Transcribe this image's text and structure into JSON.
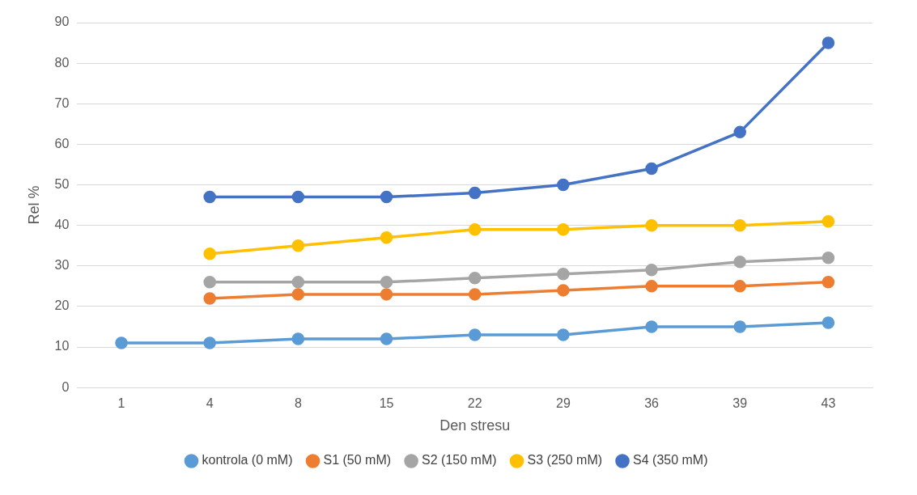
{
  "chart_data": {
    "type": "line",
    "xlabel": "Den stresu",
    "ylabel": "Rel %",
    "categories": [
      "1",
      "4",
      "8",
      "15",
      "22",
      "29",
      "36",
      "39",
      "43"
    ],
    "ylim": [
      0,
      90
    ],
    "yticks": [
      0,
      10,
      20,
      30,
      40,
      50,
      60,
      70,
      80,
      90
    ],
    "grid": "y",
    "legend": "bottom",
    "marker": "circle",
    "line_style": "solid",
    "series": [
      {
        "name": "kontrola (0 mM)",
        "color": "#5b9bd5",
        "values": [
          11,
          11,
          12,
          12,
          13,
          13,
          15,
          15,
          16
        ]
      },
      {
        "name": "S1 (50 mM)",
        "color": "#ed7d31",
        "values": [
          null,
          22,
          23,
          23,
          23,
          24,
          25,
          25,
          26
        ]
      },
      {
        "name": "S2 (150 mM)",
        "color": "#a5a5a5",
        "values": [
          null,
          26,
          26,
          26,
          27,
          28,
          29,
          31,
          32
        ]
      },
      {
        "name": "S3 (250 mM)",
        "color": "#ffc000",
        "values": [
          null,
          33,
          35,
          37,
          39,
          39,
          40,
          40,
          41
        ]
      },
      {
        "name": "S4 (350 mM)",
        "color": "#4472c4",
        "values": [
          null,
          47,
          47,
          47,
          48,
          50,
          54,
          63,
          85
        ]
      }
    ]
  }
}
